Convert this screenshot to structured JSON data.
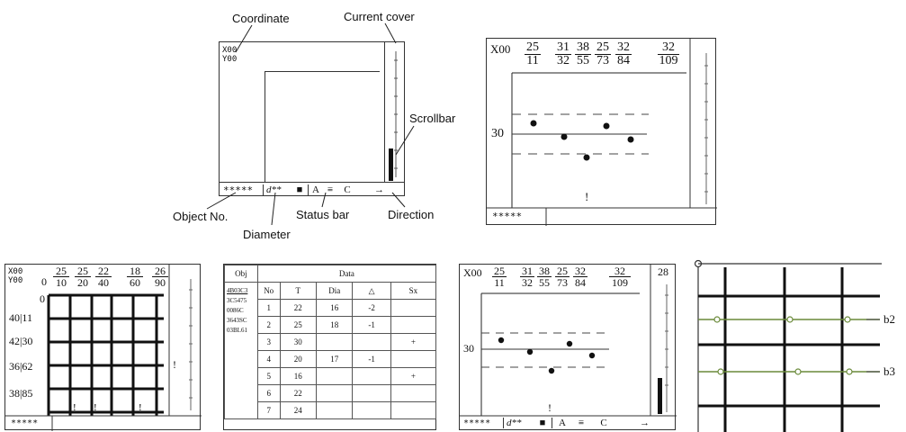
{
  "callouts": {
    "coordinate": "Coordinate",
    "current_cover": "Current cover",
    "scrollbar": "Scrollbar",
    "object_no": "Object No.",
    "diameter": "Diameter",
    "status_bar": "Status bar",
    "direction": "Direction"
  },
  "panel1": {
    "coord_x": "X00",
    "coord_y": "Y00",
    "status_object": "*****",
    "status_diameter": "d**",
    "status_square": "■",
    "status_a": "A",
    "status_lines": "≡",
    "status_c": "C",
    "status_arrow": "→"
  },
  "panel2": {
    "coord_x": "X00",
    "fractions": [
      {
        "n": "25",
        "d": "11"
      },
      {
        "n": "31",
        "d": "32"
      },
      {
        "n": "38",
        "d": "55"
      },
      {
        "n": "25",
        "d": "73"
      },
      {
        "n": "32",
        "d": "84"
      },
      {
        "n": "32",
        "d": "109"
      }
    ],
    "y_label": "30",
    "mark": "!",
    "status_object": "*****"
  },
  "panel3": {
    "coord_x": "X00",
    "coord_y": "Y00",
    "zero_label": "0",
    "top_fractions": [
      {
        "n": "25",
        "d": "10"
      },
      {
        "n": "25",
        "d": "20"
      },
      {
        "n": "22",
        "d": "40"
      },
      {
        "n": "18",
        "d": "60"
      },
      {
        "n": "26",
        "d": "90"
      }
    ],
    "origin_label": "0",
    "row_labels": [
      "40|11",
      "42|30",
      "36|62",
      "38|85"
    ],
    "mark": "!",
    "status_object": "*****"
  },
  "panel4": {
    "header_obj": "Obj",
    "header_data": "Data",
    "object_ids": [
      "4B03C3",
      "3C5475",
      "0086C",
      "3643SC",
      "03BL61"
    ],
    "columns": [
      "No",
      "T",
      "Dia",
      "△",
      "Sx"
    ],
    "rows": [
      {
        "no": "1",
        "t": "22",
        "dia": "16",
        "delta": "-2",
        "sx": ""
      },
      {
        "no": "2",
        "t": "25",
        "dia": "18",
        "delta": "-1",
        "sx": ""
      },
      {
        "no": "3",
        "t": "30",
        "dia": "",
        "delta": "",
        "sx": "+"
      },
      {
        "no": "4",
        "t": "20",
        "dia": "17",
        "delta": "-1",
        "sx": ""
      },
      {
        "no": "5",
        "t": "16",
        "dia": "",
        "delta": "",
        "sx": "+"
      },
      {
        "no": "6",
        "t": "22",
        "dia": "",
        "delta": "",
        "sx": ""
      },
      {
        "no": "7",
        "t": "24",
        "dia": "",
        "delta": "",
        "sx": ""
      }
    ]
  },
  "panel5": {
    "coord_x": "X00",
    "fractions": [
      {
        "n": "25",
        "d": "11"
      },
      {
        "n": "31",
        "d": "32"
      },
      {
        "n": "38",
        "d": "55"
      },
      {
        "n": "25",
        "d": "73"
      },
      {
        "n": "32",
        "d": "84"
      },
      {
        "n": "32",
        "d": "109"
      }
    ],
    "scroll_label": "28",
    "y_label": "30",
    "mark": "!",
    "status_object": "*****",
    "status_diameter": "d**",
    "status_square": "■",
    "status_a": "A",
    "status_lines": "≡",
    "status_c": "C",
    "status_arrow": "→"
  },
  "panel6": {
    "labels": [
      "b2",
      "b3"
    ]
  }
}
